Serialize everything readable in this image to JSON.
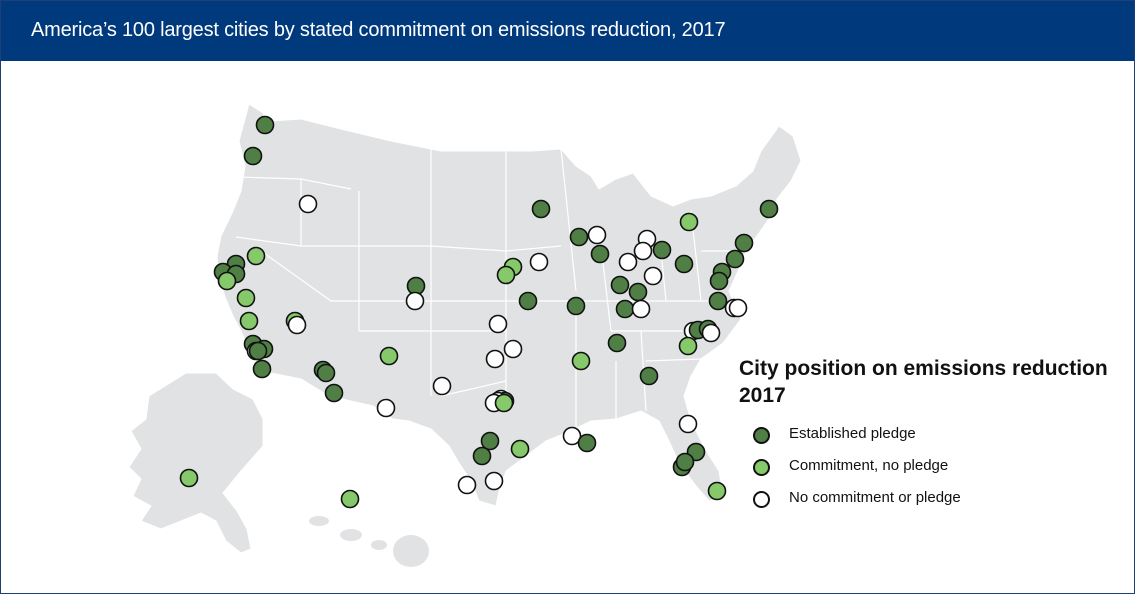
{
  "title": "America’s 100 largest cities by stated commitment on emissions reduction, 2017",
  "colors": {
    "title_bar": "#003a7d",
    "land": "#e1e2e3",
    "state_border": "#ffffff",
    "established": "#4f7f45",
    "commitment": "#85c96a",
    "none": "#ffffff",
    "outline": "#111111"
  },
  "legend": {
    "title_line1": "City position on emissions reduction",
    "title_line2": "2017",
    "items": [
      {
        "key": "established",
        "label": "Established pledge",
        "color": "#4f7f45"
      },
      {
        "key": "commitment",
        "label": "Commitment, no pledge",
        "color": "#85c96a"
      },
      {
        "key": "none",
        "label": "No commitment or pledge",
        "color": "#ffffff"
      }
    ]
  },
  "city_counts": {
    "established": 53,
    "commitment": 19,
    "none": 28
  }
}
